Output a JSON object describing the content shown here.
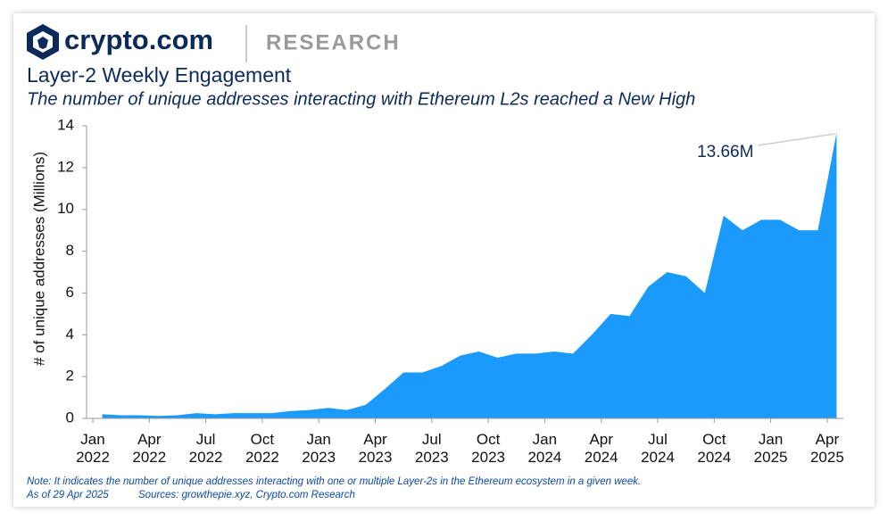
{
  "brand": "crypto.com",
  "brand_section": "RESEARCH",
  "note": "Note: It indicates the number of unique addresses interacting with one or multiple Layer-2s in the Ethereum ecosystem in a given week.",
  "as_of": "As of 29 Apr 2025",
  "sources": "Sources: growthepie.xyz, Crypto.com Research",
  "chart_data": {
    "type": "area",
    "title": "Layer-2 Weekly Engagement",
    "subtitle": "The number of unique addresses interacting with Ethereum L2s reached a New High",
    "y_label": "# of unique addresses (Millions)",
    "color": "#1a9bfc",
    "x": [
      "2022-01",
      "2022-02",
      "2022-03",
      "2022-04",
      "2022-05",
      "2022-06",
      "2022-07",
      "2022-08",
      "2022-09",
      "2022-10",
      "2022-11",
      "2022-12",
      "2023-01",
      "2023-02",
      "2023-03",
      "2023-04",
      "2023-05",
      "2023-06",
      "2023-07",
      "2023-08",
      "2023-09",
      "2023-10",
      "2023-11",
      "2023-12",
      "2024-01",
      "2024-02",
      "2024-03",
      "2024-04",
      "2024-05",
      "2024-06",
      "2024-07",
      "2024-08",
      "2024-09",
      "2024-10",
      "2024-11",
      "2024-12",
      "2025-01",
      "2025-02",
      "2025-03",
      "2025-04"
    ],
    "values": [
      0.2,
      0.15,
      0.15,
      0.12,
      0.15,
      0.25,
      0.2,
      0.25,
      0.25,
      0.25,
      0.35,
      0.4,
      0.5,
      0.4,
      0.65,
      1.4,
      2.2,
      2.2,
      2.5,
      3.0,
      3.2,
      2.9,
      3.1,
      3.1,
      3.2,
      3.1,
      4.0,
      5.0,
      4.9,
      6.3,
      7.0,
      6.8,
      6.0,
      9.7,
      9.0,
      9.5,
      9.5,
      9.0,
      9.0,
      13.66
    ],
    "value_labels": [
      null,
      null,
      null,
      null,
      null,
      null,
      null,
      null,
      null,
      null,
      null,
      null,
      null,
      null,
      null,
      null,
      null,
      null,
      null,
      null,
      null,
      null,
      null,
      null,
      null,
      null,
      null,
      null,
      null,
      null,
      null,
      null,
      null,
      null,
      null,
      null,
      null,
      null,
      null,
      "13.66M"
    ],
    "xticks": [
      {
        "value": "2022-01",
        "label": "Jan 2022"
      },
      {
        "value": "2022-04",
        "label": "Apr 2022"
      },
      {
        "value": "2022-07",
        "label": "Jul 2022"
      },
      {
        "value": "2022-10",
        "label": "Oct 2022"
      },
      {
        "value": "2023-01",
        "label": "Jan 2023"
      },
      {
        "value": "2023-04",
        "label": "Apr 2023"
      },
      {
        "value": "2023-07",
        "label": "Jul 2023"
      },
      {
        "value": "2023-10",
        "label": "Oct 2023"
      },
      {
        "value": "2024-01",
        "label": "Jan 2024"
      },
      {
        "value": "2024-04",
        "label": "Apr 2024"
      },
      {
        "value": "2024-07",
        "label": "Jul 2024"
      },
      {
        "value": "2024-10",
        "label": "Oct 2024"
      },
      {
        "value": "2025-01",
        "label": "Jan 2025"
      },
      {
        "value": "2025-04",
        "label": "Apr 2025"
      }
    ],
    "ylim": [
      0,
      14
    ],
    "yticks": [
      0,
      2,
      4,
      6,
      8,
      10,
      12,
      14
    ],
    "grid": false
  }
}
